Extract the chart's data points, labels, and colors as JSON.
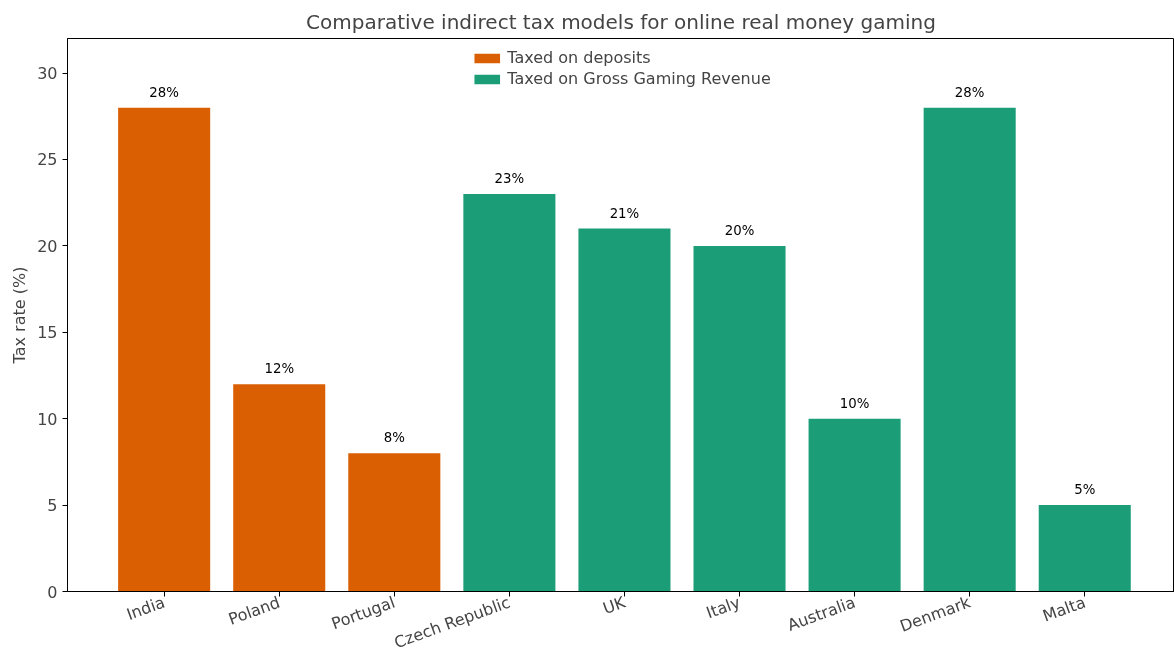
{
  "chart_data": {
    "type": "bar",
    "title": "Comparative indirect tax models for online real money gaming",
    "ylabel": "Tax rate (%)",
    "categories": [
      "India",
      "Poland",
      "Portugal",
      "Czech Republic",
      "UK",
      "Italy",
      "Australia",
      "Denmark",
      "Malta"
    ],
    "series": [
      {
        "name": "Taxed on deposits",
        "color": "#d95f02",
        "values": [
          28,
          12,
          8,
          null,
          null,
          null,
          null,
          null,
          null
        ],
        "value_labels": [
          "28%",
          "12%",
          "8%",
          null,
          null,
          null,
          null,
          null,
          null
        ]
      },
      {
        "name": "Taxed on Gross Gaming Revenue",
        "color": "#1b9e77",
        "values": [
          null,
          null,
          null,
          23,
          21,
          20,
          10,
          28,
          5
        ],
        "value_labels": [
          null,
          null,
          null,
          "23%",
          "21%",
          "20%",
          "10%",
          "28%",
          "5%"
        ]
      }
    ],
    "ylim": [
      0,
      32
    ],
    "yticks": [
      0,
      5,
      10,
      15,
      20,
      25,
      30
    ],
    "grid": false,
    "legend": "top"
  }
}
